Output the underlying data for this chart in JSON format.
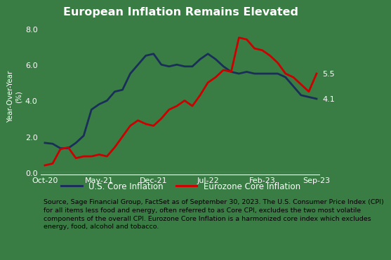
{
  "title": "European Inflation Remains Elevated",
  "ylabel": "Year-Over-Year\n(%)",
  "bg_color": "#3a7d44",
  "plot_bg_color": "#3a7d44",
  "foot_bg_color": "#ffffff",
  "us_color": "#1a2e5a",
  "ez_color": "#cc0000",
  "us_label": "U.S. Core Inflation",
  "ez_label": "Eurozone Core Inflation",
  "ylim": [
    0.0,
    8.5
  ],
  "yticks": [
    0.0,
    2.0,
    4.0,
    6.0,
    8.0
  ],
  "footnote_line1": "Source, Sage Financial Group, FactSet as of September 30, 2023. The U.S. Consumer Price Index (CPI)",
  "footnote_line2": "for all items less food and energy, often referred to as Core CPI, excludes the two most volatile",
  "footnote_line3": "components of the overall CPI. Eurozone Core Inflation is a harmonized core index which excludes",
  "footnote_line4": "energy, food, alcohol and tobacco.",
  "x_labels": [
    "Oct-20",
    "May-21",
    "Dec-21",
    "Jul-22",
    "Feb-23",
    "Sep-23"
  ],
  "xtick_positions": [
    0,
    7,
    14,
    21,
    28,
    35
  ],
  "us_months": [
    0,
    1,
    2,
    3,
    4,
    5,
    6,
    7,
    8,
    9,
    10,
    11,
    12,
    13,
    14,
    15,
    16,
    17,
    18,
    19,
    20,
    21,
    22,
    23,
    24,
    25,
    26,
    27,
    28,
    29,
    30,
    31,
    32,
    33,
    34,
    35
  ],
  "us_values": [
    1.65,
    1.6,
    1.35,
    1.35,
    1.65,
    2.05,
    3.5,
    3.8,
    4.0,
    4.5,
    4.6,
    5.5,
    6.0,
    6.5,
    6.6,
    6.0,
    5.9,
    6.0,
    5.9,
    5.9,
    6.3,
    6.6,
    6.3,
    5.9,
    5.6,
    5.5,
    5.6,
    5.5,
    5.5,
    5.5,
    5.5,
    5.3,
    4.8,
    4.3,
    4.2,
    4.1
  ],
  "ez_months": [
    0,
    1,
    2,
    3,
    4,
    5,
    6,
    7,
    8,
    9,
    10,
    11,
    12,
    13,
    14,
    15,
    16,
    17,
    18,
    19,
    20,
    21,
    22,
    23,
    24,
    25,
    26,
    27,
    28,
    29,
    30,
    31,
    32,
    33,
    34,
    35
  ],
  "ez_values": [
    0.4,
    0.5,
    1.3,
    1.4,
    0.8,
    0.9,
    0.9,
    1.0,
    0.9,
    1.4,
    2.0,
    2.6,
    2.9,
    2.7,
    2.6,
    3.0,
    3.5,
    3.7,
    4.0,
    3.7,
    4.3,
    5.0,
    5.3,
    5.7,
    5.6,
    7.5,
    7.4,
    6.9,
    6.8,
    6.5,
    6.1,
    5.5,
    5.3,
    4.9,
    4.5,
    5.5
  ],
  "us_end_label": "4.1",
  "ez_end_label": "5.5",
  "title_fontsize": 11.5,
  "tick_fontsize": 8,
  "label_fontsize": 7.5,
  "legend_fontsize": 8.5,
  "foot_fontsize": 6.8
}
